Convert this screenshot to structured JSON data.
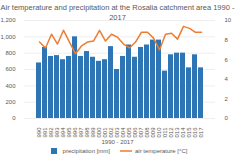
{
  "chart_data": {
    "type": "bar",
    "title": "Air temperature and precipitation at the Rosalia catchment area 1990 - 2017",
    "xlabel": "1990 - 2017",
    "categories": [
      1990,
      1991,
      1992,
      1993,
      1994,
      1995,
      1996,
      1997,
      1998,
      1999,
      2000,
      2001,
      2002,
      2003,
      2004,
      2005,
      2006,
      2007,
      2008,
      2009,
      2010,
      2011,
      2012,
      2013,
      2014,
      2015,
      2016,
      2017
    ],
    "series": [
      {
        "name": "precipitation [mm]",
        "type": "bar",
        "color": "#2e75b6",
        "values": [
          680,
          870,
          760,
          770,
          720,
          760,
          1000,
          760,
          820,
          750,
          700,
          720,
          880,
          600,
          760,
          900,
          750,
          870,
          900,
          960,
          960,
          580,
          780,
          800,
          800,
          620,
          780,
          620
        ]
      },
      {
        "name": "air temperature [°C]",
        "type": "line",
        "axis": "y2",
        "color": "#ed7d31",
        "values": [
          7.8,
          7.2,
          8.6,
          7.6,
          9.0,
          7.8,
          6.6,
          7.4,
          7.8,
          7.9,
          9.0,
          7.9,
          8.6,
          8.3,
          7.6,
          7.2,
          7.8,
          8.8,
          8.8,
          8.2,
          7.0,
          8.6,
          8.7,
          8.1,
          9.4,
          9.2,
          8.8,
          8.8
        ]
      }
    ],
    "ylim": [
      0,
      1200
    ],
    "yticks": [
      0,
      200,
      400,
      600,
      800,
      1000,
      1200
    ],
    "y2lim": [
      0,
      10
    ],
    "y2ticks": [
      0,
      2,
      4,
      6,
      8,
      10
    ],
    "grid": true,
    "legend": "bottom"
  }
}
